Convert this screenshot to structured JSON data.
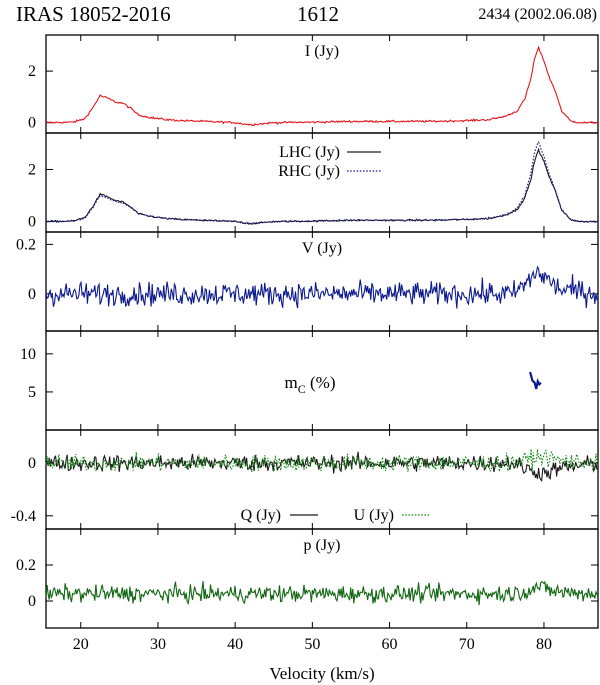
{
  "header": {
    "source": "IRAS 18052-2016",
    "line": "1612",
    "epoch": "2434 (2002.06.08)"
  },
  "colors": {
    "I": "#e8141b",
    "LHC": "#1a1a1a",
    "RHC": "#1a1a99",
    "V": "#0d1a8f",
    "mC": "#0d1a8f",
    "Q": "#1a1a1a",
    "U": "#118811",
    "p": "#116611"
  },
  "chart_data": {
    "type": "line",
    "xlabel": "Velocity (km/s)",
    "xlim": [
      15.5,
      87
    ],
    "xticks": [
      20,
      30,
      40,
      50,
      60,
      70,
      80
    ],
    "panels": [
      {
        "id": "I",
        "label": "I (Jy)",
        "ylim": [
          -0.4,
          3.4
        ],
        "yticks": [
          {
            "v": 0,
            "t": "0"
          },
          {
            "v": 2,
            "t": "2"
          }
        ],
        "noise": 0.035,
        "series": [
          {
            "name": "I (Jy)",
            "style": "solid",
            "color_key": "I",
            "x": [
              15.5,
              19,
              20.5,
              21.5,
              22.5,
              23.5,
              24.5,
              25.5,
              26.5,
              27.5,
              29,
              31,
              33,
              36,
              40,
              42,
              45,
              50,
              55,
              60,
              65,
              70,
              73,
              75,
              76.5,
              77.5,
              78.3,
              78.8,
              79.3,
              80,
              80.7,
              81.5,
              82.3,
              83.5,
              85,
              87
            ],
            "y": [
              0.0,
              0.02,
              0.15,
              0.55,
              1.05,
              0.95,
              0.8,
              0.75,
              0.55,
              0.3,
              0.2,
              0.12,
              0.08,
              0.05,
              0.0,
              -0.08,
              0.0,
              0.02,
              0.05,
              0.05,
              0.05,
              0.08,
              0.12,
              0.25,
              0.45,
              0.9,
              1.7,
              2.5,
              2.9,
              2.4,
              1.75,
              1.2,
              0.45,
              0.05,
              0.0,
              0.0
            ]
          }
        ]
      },
      {
        "id": "LR",
        "label": "",
        "ylim": [
          -0.4,
          3.4
        ],
        "yticks": [
          {
            "v": 0,
            "t": "0"
          },
          {
            "v": 2,
            "t": "2"
          }
        ],
        "noise": 0.03,
        "series": [
          {
            "name": "LHC (Jy)",
            "style": "solid",
            "color_key": "LHC",
            "x": [
              15.5,
              19,
              20.5,
              21.5,
              22.5,
              23.5,
              24.5,
              25.5,
              26.5,
              27.5,
              29,
              31,
              33,
              36,
              40,
              42,
              45,
              50,
              55,
              60,
              65,
              70,
              73,
              75,
              76.5,
              77.5,
              78.3,
              78.8,
              79.3,
              80,
              80.7,
              81.5,
              82.3,
              83.5,
              85,
              87
            ],
            "y": [
              0.0,
              0.02,
              0.15,
              0.55,
              1.05,
              0.95,
              0.8,
              0.75,
              0.55,
              0.3,
              0.2,
              0.12,
              0.08,
              0.05,
              0.0,
              -0.08,
              0.0,
              0.02,
              0.05,
              0.05,
              0.05,
              0.08,
              0.12,
              0.25,
              0.45,
              0.9,
              1.6,
              2.35,
              2.75,
              2.3,
              1.7,
              1.15,
              0.45,
              0.05,
              0.0,
              0.0
            ]
          },
          {
            "name": "RHC (Jy)",
            "style": "dotted",
            "color_key": "RHC",
            "x": [
              15.5,
              19,
              20.5,
              21.5,
              22.5,
              23.5,
              24.5,
              25.5,
              26.5,
              27.5,
              29,
              31,
              33,
              36,
              40,
              42,
              45,
              50,
              55,
              60,
              65,
              70,
              73,
              75,
              76.5,
              77.5,
              78.3,
              78.8,
              79.3,
              80,
              80.7,
              81.5,
              82.3,
              83.5,
              85,
              87
            ],
            "y": [
              0.0,
              0.02,
              0.12,
              0.5,
              1.0,
              0.9,
              0.78,
              0.72,
              0.52,
              0.3,
              0.2,
              0.12,
              0.08,
              0.05,
              0.0,
              -0.08,
              0.0,
              0.02,
              0.05,
              0.05,
              0.05,
              0.08,
              0.12,
              0.27,
              0.5,
              1.0,
              1.85,
              2.7,
              3.05,
              2.5,
              1.8,
              1.2,
              0.45,
              0.05,
              0.0,
              0.0
            ]
          }
        ],
        "legend": [
          {
            "label": "LHC (Jy)",
            "style": "solid",
            "color_key": "LHC"
          },
          {
            "label": "RHC (Jy)",
            "style": "dotted",
            "color_key": "RHC"
          }
        ]
      },
      {
        "id": "V",
        "label": "V (Jy)",
        "ylim": [
          -0.15,
          0.25
        ],
        "yticks": [
          {
            "v": 0,
            "t": "0"
          },
          {
            "v": 0.2,
            "t": "0.2"
          }
        ],
        "noise": 0.045,
        "series": [
          {
            "name": "V (Jy)",
            "style": "solid",
            "color_key": "V",
            "x": [
              15.5,
              76,
              78,
              79,
              80,
              82,
              87
            ],
            "y": [
              0.0,
              0.0,
              0.05,
              0.09,
              0.07,
              0.02,
              0.0
            ]
          }
        ]
      },
      {
        "id": "mC",
        "label": "m",
        "label_sub": "C",
        "label_tail": " (%)",
        "ylim": [
          0,
          13
        ],
        "yticks": [
          {
            "v": 5,
            "t": "5"
          },
          {
            "v": 10,
            "t": "10"
          }
        ],
        "noise": 0,
        "series": [
          {
            "name": "mC (%)",
            "style": "solid",
            "color_key": "mC",
            "x": [
              78.2,
              78.5,
              78.8,
              79.0,
              79.2,
              79.4,
              79.6
            ],
            "y": [
              7.6,
              6.5,
              6.2,
              5.4,
              6.4,
              6.0,
              6.2
            ]
          }
        ]
      },
      {
        "id": "QU",
        "label": "",
        "ylim": [
          -0.5,
          0.25
        ],
        "yticks": [
          {
            "v": 0,
            "t": "0"
          },
          {
            "v": -0.4,
            "t": "-0.4"
          }
        ],
        "noise": 0.06,
        "series": [
          {
            "name": "Q (Jy)",
            "style": "solid",
            "color_key": "Q",
            "x": [
              15.5,
              76,
              78,
              80,
              82,
              87
            ],
            "y": [
              0.0,
              0.0,
              -0.05,
              -0.08,
              -0.04,
              0.0
            ]
          },
          {
            "name": "U (Jy)",
            "style": "dotted",
            "color_key": "U",
            "x": [
              15.5,
              76,
              78,
              80,
              82,
              87
            ],
            "y": [
              0.0,
              0.0,
              0.03,
              0.05,
              0.02,
              0.0
            ]
          }
        ],
        "legend": [
          {
            "label": "Q (Jy)",
            "style": "solid",
            "color_key": "Q"
          },
          {
            "label": "U (Jy)",
            "style": "dotted",
            "color_key": "U"
          }
        ]
      },
      {
        "id": "p",
        "label": "p (Jy)",
        "ylim": [
          -0.15,
          0.4
        ],
        "yticks": [
          {
            "v": 0,
            "t": "0"
          },
          {
            "v": 0.2,
            "t": "0.2"
          }
        ],
        "noise": 0.045,
        "series": [
          {
            "name": "p (Jy)",
            "style": "solid",
            "color_key": "p",
            "x": [
              15.5,
              76,
              78,
              79,
              80,
              82,
              87
            ],
            "y": [
              0.04,
              0.04,
              0.06,
              0.08,
              0.07,
              0.05,
              0.04
            ]
          }
        ]
      }
    ]
  }
}
